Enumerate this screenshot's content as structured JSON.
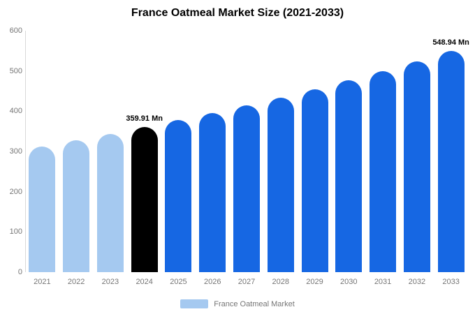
{
  "chart_data": {
    "type": "bar",
    "title": "France Oatmeal Market Size (2021-2033)",
    "xlabel": "",
    "ylabel": "",
    "categories": [
      "2021",
      "2022",
      "2023",
      "2024",
      "2025",
      "2026",
      "2027",
      "2028",
      "2029",
      "2030",
      "2031",
      "2032",
      "2033"
    ],
    "series": [
      {
        "name": "France Oatmeal Market",
        "values": [
          312.7,
          327.7,
          343.4,
          359.91,
          377.2,
          395.3,
          414.3,
          434.2,
          455.0,
          476.9,
          499.8,
          523.8,
          548.94
        ]
      }
    ],
    "data_labels": {
      "3": "359.91 Mn",
      "12": "548.94 Mn"
    },
    "ylim": [
      0,
      600
    ],
    "yticks": [
      0,
      100,
      200,
      300,
      400,
      500,
      600
    ],
    "bar_colors": [
      "#A5C9F0",
      "#A5C9F0",
      "#A5C9F0",
      "#000000",
      "#1667E3",
      "#1667E3",
      "#1667E3",
      "#1667E3",
      "#1667E3",
      "#1667E3",
      "#1667E3",
      "#1667E3",
      "#1667E3"
    ],
    "grid": false,
    "axis_color": "#d9d9d9",
    "tick_label_color": "#757575",
    "legend": {
      "label": "France Oatmeal Market",
      "swatch_color": "#A5C9F0",
      "position": "bottom"
    }
  }
}
